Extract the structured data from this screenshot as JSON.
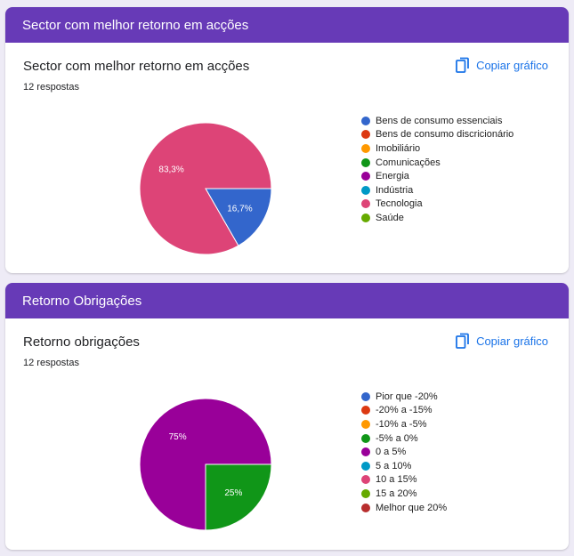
{
  "cards": [
    {
      "header": "Sector com melhor retorno em acções",
      "title": "Sector com melhor retorno em acções",
      "responses": "12 respostas",
      "copy_label": "Copiar gráfico",
      "chart_data": {
        "type": "pie",
        "categories": [
          "Bens de consumo essenciais",
          "Bens de consumo discricionário",
          "Imobiliário",
          "Comunicações",
          "Energia",
          "Indústria",
          "Tecnologia",
          "Saúde"
        ],
        "values": [
          16.7,
          0,
          0,
          0,
          0,
          0,
          83.3,
          0
        ],
        "labels": [
          "16,7%",
          "",
          "",
          "",
          "",
          "",
          "83,3%",
          ""
        ],
        "colors": [
          "#3366cc",
          "#dc3912",
          "#ff9900",
          "#109618",
          "#990099",
          "#0099c6",
          "#dd4477",
          "#66aa00"
        ]
      }
    },
    {
      "header": "Retorno Obrigações",
      "title": "Retorno obrigações",
      "responses": "12 respostas",
      "copy_label": "Copiar gráfico",
      "chart_data": {
        "type": "pie",
        "categories": [
          "Pior que -20%",
          "-20% a -15%",
          "-10% a -5%",
          "-5% a 0%",
          "0 a 5%",
          "5 a 10%",
          "10 a 15%",
          "15 a 20%",
          "Melhor que 20%"
        ],
        "values": [
          0,
          0,
          0,
          25,
          75,
          0,
          0,
          0,
          0
        ],
        "labels": [
          "",
          "",
          "",
          "25%",
          "75%",
          "",
          "",
          "",
          ""
        ],
        "colors": [
          "#3366cc",
          "#dc3912",
          "#ff9900",
          "#109618",
          "#990099",
          "#0099c6",
          "#dd4477",
          "#66aa00",
          "#b82e2e"
        ]
      }
    }
  ]
}
